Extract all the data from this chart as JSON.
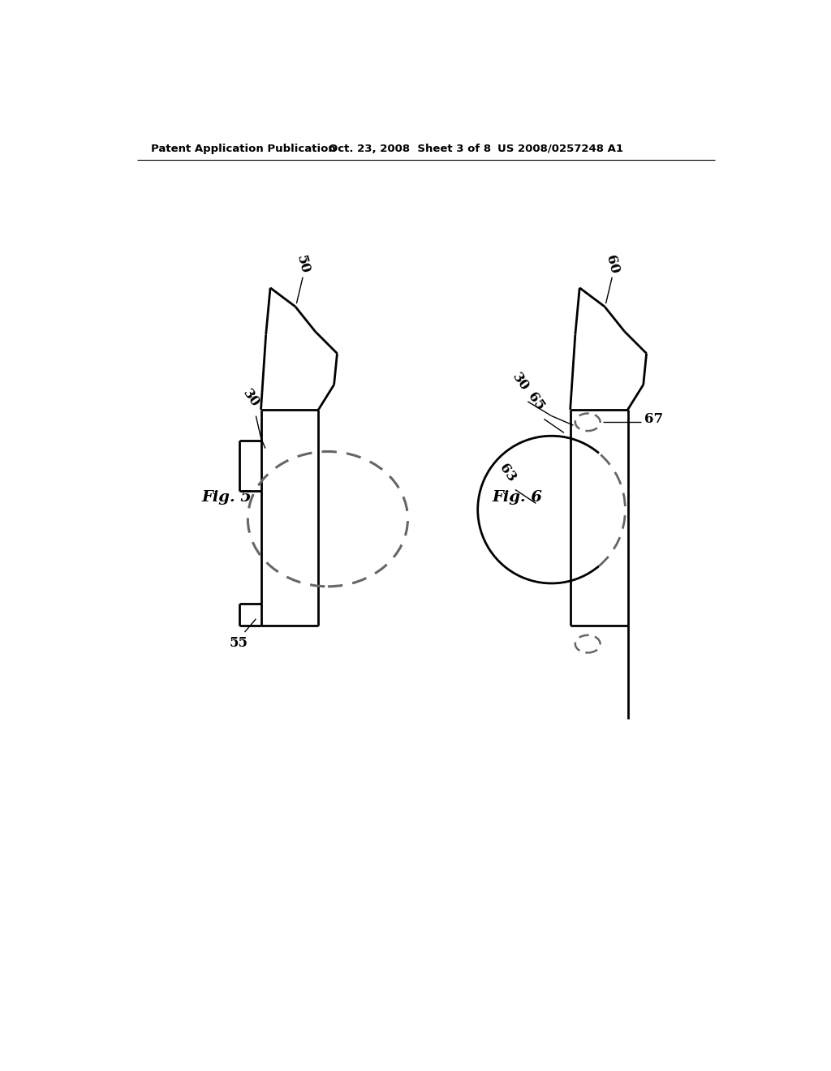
{
  "bg_color": "#ffffff",
  "line_color": "#000000",
  "dashed_color": "#666666",
  "header_text": "Patent Application Publication",
  "header_date": "Oct. 23, 2008  Sheet 3 of 8",
  "header_patent": "US 2008/0257248 A1",
  "fig5_label": "Fig. 5",
  "fig6_label": "Fig. 6",
  "label_50": "50",
  "label_30": "30",
  "label_55": "55",
  "label_60": "60",
  "label_30b": "30",
  "label_65": "65",
  "label_63": "63",
  "label_67": "67"
}
